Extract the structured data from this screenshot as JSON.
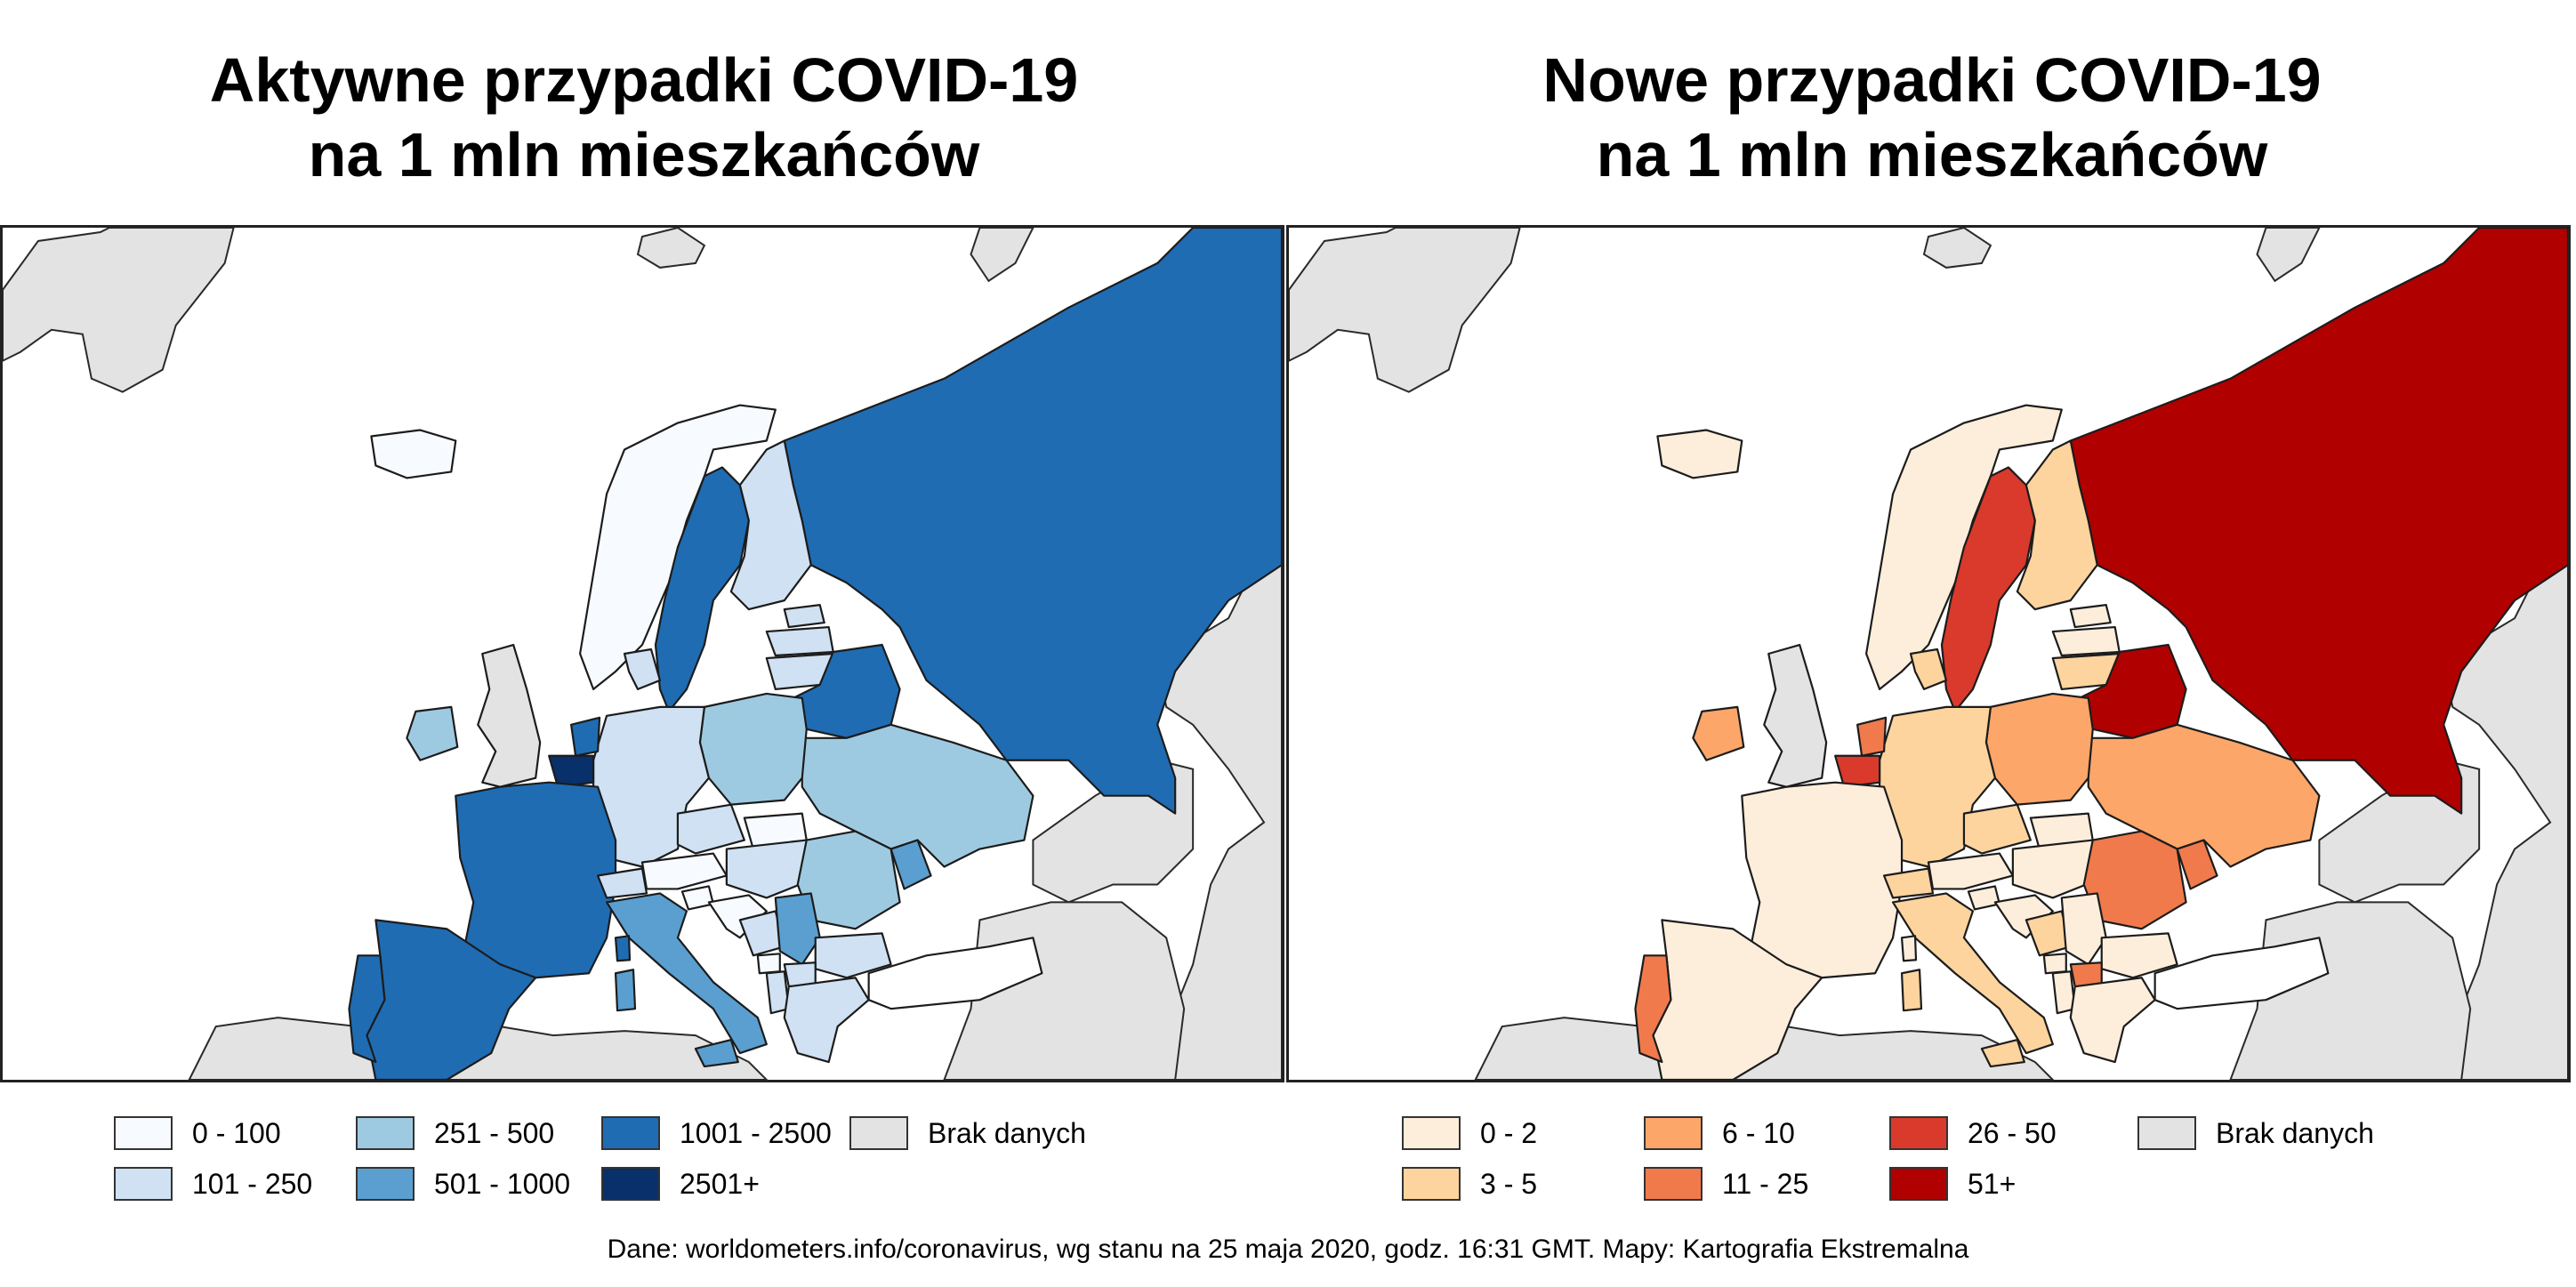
{
  "left_map": {
    "title": "Aktywne przypadki COVID-19\nna 1 mln mieszkańców",
    "legend": [
      {
        "label": "0 - 100",
        "color": "#f7fbff"
      },
      {
        "label": "101 - 250",
        "color": "#cfe1f2"
      },
      {
        "label": "251 - 500",
        "color": "#9ecae1"
      },
      {
        "label": "501 - 1000",
        "color": "#5a9fd0"
      },
      {
        "label": "1001 - 2500",
        "color": "#1f6cb3"
      },
      {
        "label": "2501+",
        "color": "#08306b"
      },
      {
        "label": "Brak danych",
        "color": "#e3e3e3"
      }
    ],
    "countries": {
      "russia": "#1f6cb3",
      "norway": "#f7fbff",
      "sweden": "#1f6cb3",
      "finland": "#cfe1f2",
      "estonia": "#cfe1f2",
      "latvia": "#cfe1f2",
      "lithuania": "#cfe1f2",
      "belarus": "#1f6cb3",
      "ukraine": "#9ecae1",
      "poland": "#9ecae1",
      "germany": "#cfe1f2",
      "denmark": "#cfe1f2",
      "netherlands": "#1f6cb3",
      "belgium": "#08306b",
      "france": "#1f6cb3",
      "spain": "#1f6cb3",
      "portugal": "#1f6cb3",
      "uk": "#e3e3e3",
      "ireland": "#9ecae1",
      "iceland": "#f7fbff",
      "switzerland": "#cfe1f2",
      "austria": "#f7fbff",
      "czechia": "#cfe1f2",
      "slovakia": "#f7fbff",
      "hungary": "#cfe1f2",
      "romania": "#9ecae1",
      "moldova": "#5a9fd0",
      "italy": "#5a9fd0",
      "slovenia": "#f7fbff",
      "croatia": "#f7fbff",
      "bosnia": "#cfe1f2",
      "serbia": "#5a9fd0",
      "bulgaria": "#cfe1f2",
      "greece": "#cfe1f2",
      "albania": "#cfe1f2",
      "north_macedonia": "#cfe1f2",
      "montenegro": "#f7fbff",
      "turkey": "#ffffff",
      "sardinia": "#5a9fd0",
      "corsica": "#1f6cb3",
      "sicily": "#5a9fd0",
      "nafrica": "#ffffff"
    }
  },
  "right_map": {
    "title": "Nowe przypadki COVID-19\nna 1 mln mieszkańców",
    "legend": [
      {
        "label": "0 - 2",
        "color": "#fdeedb"
      },
      {
        "label": "3 - 5",
        "color": "#fdd49e"
      },
      {
        "label": "6 - 10",
        "color": "#fca66a"
      },
      {
        "label": "11 - 25",
        "color": "#f07a4c"
      },
      {
        "label": "26 - 50",
        "color": "#d93a2b"
      },
      {
        "label": "51+",
        "color": "#b00000"
      },
      {
        "label": "Brak danych",
        "color": "#e3e3e3"
      }
    ],
    "countries": {
      "russia": "#b00000",
      "norway": "#fdeedb",
      "sweden": "#d93a2b",
      "finland": "#fdd49e",
      "estonia": "#fdeedb",
      "latvia": "#fdeedb",
      "lithuania": "#fdd49e",
      "belarus": "#b00000",
      "ukraine": "#fca66a",
      "poland": "#fca66a",
      "germany": "#fdd49e",
      "denmark": "#fdd49e",
      "netherlands": "#f07a4c",
      "belgium": "#d93a2b",
      "france": "#fdeedb",
      "spain": "#fdeedb",
      "portugal": "#f07a4c",
      "uk": "#e3e3e3",
      "ireland": "#fca66a",
      "iceland": "#fdeedb",
      "switzerland": "#fdd49e",
      "austria": "#fdeedb",
      "czechia": "#fdd49e",
      "slovakia": "#fdeedb",
      "hungary": "#fdeedb",
      "romania": "#f07a4c",
      "moldova": "#f07a4c",
      "italy": "#fdd49e",
      "slovenia": "#fdeedb",
      "croatia": "#fdeedb",
      "bosnia": "#fdd49e",
      "serbia": "#fdeedb",
      "bulgaria": "#fdeedb",
      "greece": "#fdeedb",
      "albania": "#fdeedb",
      "north_macedonia": "#f07a4c",
      "montenegro": "#fdeedb",
      "turkey": "#ffffff",
      "sardinia": "#fdd49e",
      "corsica": "#fdeedb",
      "sicily": "#fdd49e",
      "nafrica": "#ffffff"
    }
  },
  "source": "Dane: worldometers.info/coronavirus, wg stanu na 25 maja 2020, godz. 16:31 GMT. Mapy: Kartografia Ekstremalna"
}
